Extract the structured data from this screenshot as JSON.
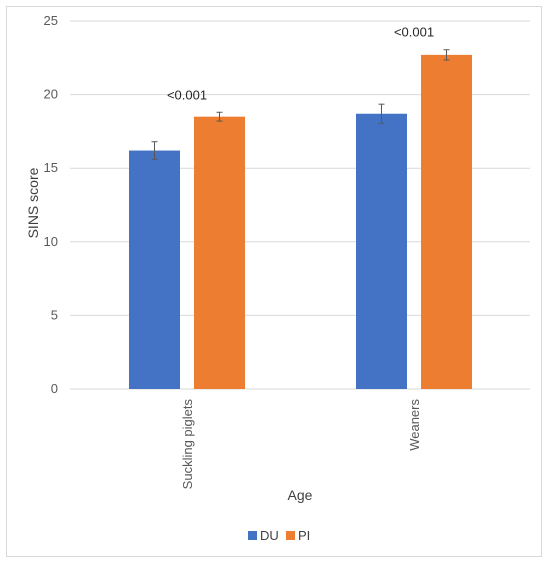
{
  "chart_data": {
    "type": "bar",
    "title": "",
    "xlabel": "Age",
    "ylabel": "SINS score",
    "ylim": [
      0,
      25
    ],
    "yticks": [
      0,
      5,
      10,
      15,
      20,
      25
    ],
    "grid": true,
    "legend_position": "bottom",
    "categories": [
      "Suckling piglets",
      "Weaners"
    ],
    "series": [
      {
        "name": "DU",
        "color": "#4472c4",
        "values": [
          16.2,
          18.7
        ],
        "errors": [
          0.6,
          0.65
        ]
      },
      {
        "name": "PI",
        "color": "#ed7d31",
        "values": [
          18.5,
          22.7
        ],
        "errors": [
          0.3,
          0.35
        ]
      }
    ],
    "annotations": [
      "<0.001",
      "<0.001"
    ]
  }
}
